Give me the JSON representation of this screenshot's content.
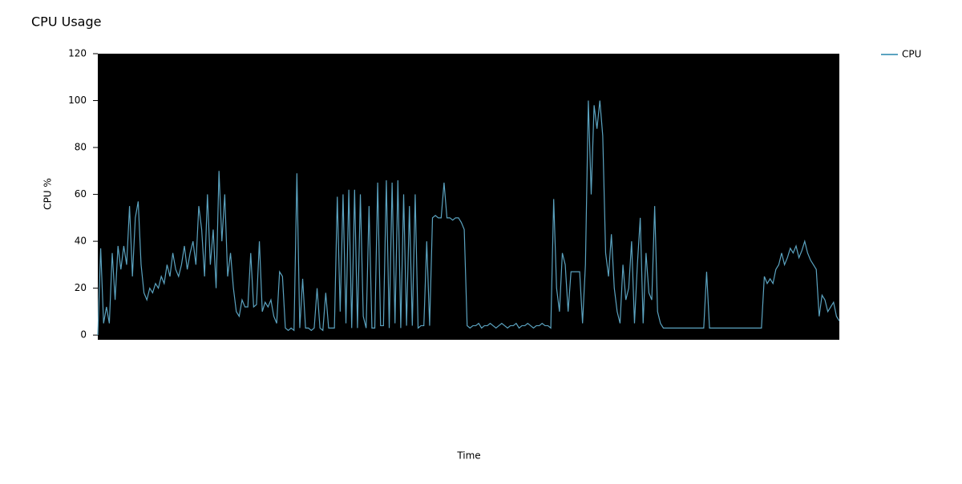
{
  "chart_data": {
    "type": "line",
    "title": "CPU Usage",
    "ylabel": "CPU %",
    "xlabel": "Time",
    "series": [
      {
        "name": "CPU",
        "color": "#5ba3c0",
        "values": [
          0,
          37,
          5,
          12,
          5,
          35,
          15,
          38,
          28,
          38,
          30,
          55,
          25,
          50,
          57,
          30,
          18,
          15,
          20,
          18,
          22,
          20,
          25,
          22,
          30,
          25,
          35,
          28,
          25,
          30,
          38,
          28,
          35,
          40,
          30,
          55,
          45,
          25,
          60,
          30,
          45,
          20,
          70,
          40,
          60,
          25,
          35,
          20,
          10,
          8,
          15,
          12,
          12,
          35,
          12,
          13,
          40,
          10,
          14,
          12,
          15,
          8,
          5,
          27,
          25,
          3,
          2,
          3,
          2,
          69,
          3,
          24,
          3,
          3,
          2,
          3,
          20,
          3,
          2,
          18,
          3,
          3,
          3,
          59,
          10,
          60,
          5,
          62,
          3,
          62,
          3,
          60,
          8,
          3,
          55,
          3,
          3,
          65,
          4,
          4,
          66,
          3,
          65,
          5,
          66,
          3,
          60,
          4,
          55,
          4,
          60,
          3,
          4,
          4,
          40,
          4,
          50,
          51,
          50,
          50,
          65,
          50,
          50,
          49,
          50,
          50,
          48,
          45,
          4,
          3,
          4,
          4,
          5,
          3,
          4,
          4,
          5,
          4,
          3,
          4,
          5,
          4,
          3,
          4,
          4,
          5,
          3,
          4,
          4,
          5,
          4,
          3,
          4,
          4,
          5,
          4,
          4,
          3,
          58,
          20,
          10,
          35,
          30,
          10,
          27,
          27,
          27,
          27,
          5,
          30,
          100,
          60,
          98,
          88,
          100,
          85,
          35,
          25,
          43,
          20,
          10,
          5,
          30,
          15,
          20,
          40,
          5,
          30,
          50,
          5,
          35,
          18,
          15,
          55,
          10,
          5,
          3,
          3,
          3,
          3,
          3,
          3,
          3,
          3,
          3,
          3,
          3,
          3,
          3,
          3,
          3,
          27,
          3,
          3,
          3,
          3,
          3,
          3,
          3,
          3,
          3,
          3,
          3,
          3,
          3,
          3,
          3,
          3,
          3,
          3,
          3,
          25,
          22,
          24,
          22,
          28,
          30,
          35,
          30,
          33,
          37,
          35,
          38,
          33,
          36,
          40,
          35,
          32,
          30,
          28,
          8,
          17,
          15,
          10,
          12,
          14,
          8,
          6
        ]
      }
    ],
    "ylim": [
      -2,
      120
    ],
    "yticks": [
      0,
      20,
      40,
      60,
      80,
      100,
      120
    ],
    "legend": "top-right",
    "background": "#000000"
  }
}
